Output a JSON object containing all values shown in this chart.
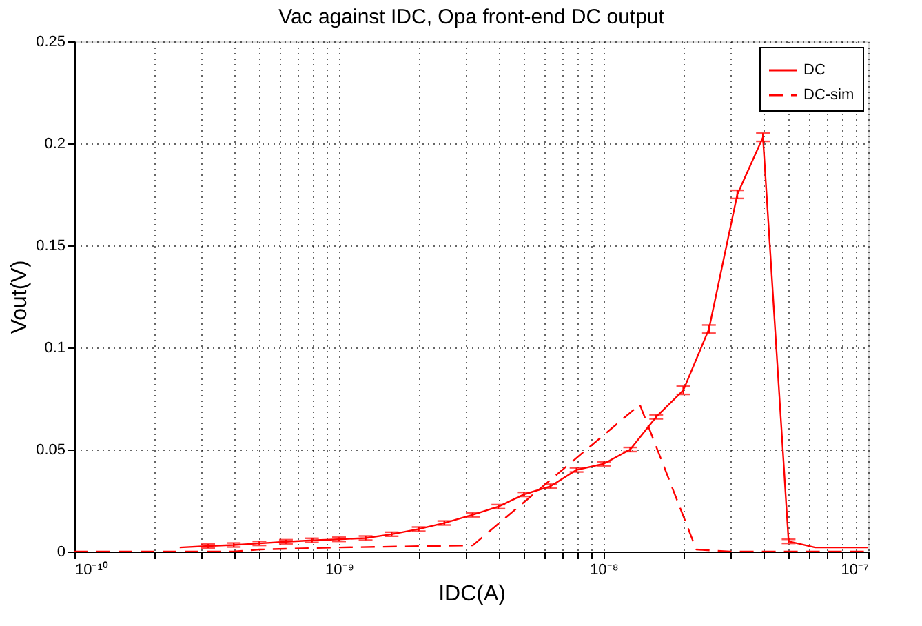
{
  "chart_data": {
    "type": "line",
    "title": "Vac against IDC, Opa front-end DC output",
    "xlabel": "IDC(A)",
    "ylabel": "Vout(V)",
    "log": "x",
    "grid": true,
    "legend": "top right",
    "marker": "none",
    "xlim": [
      1e-10,
      1e-07
    ],
    "ylim": [
      0,
      0.25
    ],
    "xticks": [
      {
        "value": 1e-10,
        "label": "10⁻¹⁰"
      },
      {
        "value": 2e-10,
        "label": null
      },
      {
        "value": 3e-10,
        "label": null
      },
      {
        "value": 4e-10,
        "label": null
      },
      {
        "value": 5e-10,
        "label": null
      },
      {
        "value": 6e-10,
        "label": null
      },
      {
        "value": 7e-10,
        "label": null
      },
      {
        "value": 8e-10,
        "label": null
      },
      {
        "value": 9e-10,
        "label": null
      },
      {
        "value": 1e-09,
        "label": "10⁻⁹"
      },
      {
        "value": 2e-09,
        "label": null
      },
      {
        "value": 3e-09,
        "label": null
      },
      {
        "value": 4e-09,
        "label": null
      },
      {
        "value": 5e-09,
        "label": null
      },
      {
        "value": 6e-09,
        "label": null
      },
      {
        "value": 7e-09,
        "label": null
      },
      {
        "value": 8e-09,
        "label": null
      },
      {
        "value": 9e-09,
        "label": null
      },
      {
        "value": 1e-08,
        "label": "10⁻⁸"
      },
      {
        "value": 2e-08,
        "label": null
      },
      {
        "value": 3e-08,
        "label": null
      },
      {
        "value": 4e-08,
        "label": null
      },
      {
        "value": 5e-08,
        "label": null
      },
      {
        "value": 6e-08,
        "label": null
      },
      {
        "value": 7e-08,
        "label": null
      },
      {
        "value": 8e-08,
        "label": null
      },
      {
        "value": 9e-08,
        "label": null
      },
      {
        "value": 1e-07,
        "label": "10⁻⁷"
      }
    ],
    "yticks": [
      0,
      0.05,
      0.1,
      0.15,
      0.2,
      0.25
    ],
    "series": [
      {
        "name": "DC",
        "color": "#ff0000",
        "line_style": "solid",
        "x": [
          2.5e-10,
          3.2e-10,
          4e-10,
          5e-10,
          6.3e-10,
          7.9e-10,
          1e-09,
          1.26e-09,
          1.58e-09,
          2e-09,
          2.5e-09,
          3.2e-09,
          4e-09,
          5e-09,
          6.3e-09,
          7.9e-09,
          1e-08,
          1.26e-08,
          1.58e-08,
          2e-08,
          2.5e-08,
          3.2e-08,
          4e-08,
          5e-08,
          6.3e-08,
          7.9e-08,
          1e-07
        ],
        "values": [
          0.002,
          0.0027,
          0.0032,
          0.004,
          0.0048,
          0.0055,
          0.006,
          0.0066,
          0.0085,
          0.011,
          0.014,
          0.018,
          0.022,
          0.028,
          0.032,
          0.04,
          0.043,
          0.05,
          0.066,
          0.079,
          0.109,
          0.175,
          0.203,
          0.005,
          0.002,
          0.002,
          0.002
        ],
        "errors": [
          null,
          0.001,
          0.001,
          0.001,
          0.001,
          0.001,
          0.001,
          0.001,
          0.001,
          0.001,
          0.001,
          0.001,
          0.001,
          0.001,
          0.001,
          0.001,
          0.001,
          0.001,
          0.001,
          0.002,
          0.002,
          0.002,
          0.002,
          0.001,
          null,
          null,
          null
        ]
      },
      {
        "name": "DC-sim",
        "color": "#ff0000",
        "line_style": "dashed",
        "x": [
          1e-10,
          4e-10,
          5e-10,
          1e-09,
          3.2e-09,
          1.37e-08,
          2.24e-08,
          3e-08,
          1e-07
        ],
        "values": [
          0,
          0,
          0.001,
          0.002,
          0.003,
          0.072,
          0.001,
          0,
          0
        ]
      }
    ]
  }
}
